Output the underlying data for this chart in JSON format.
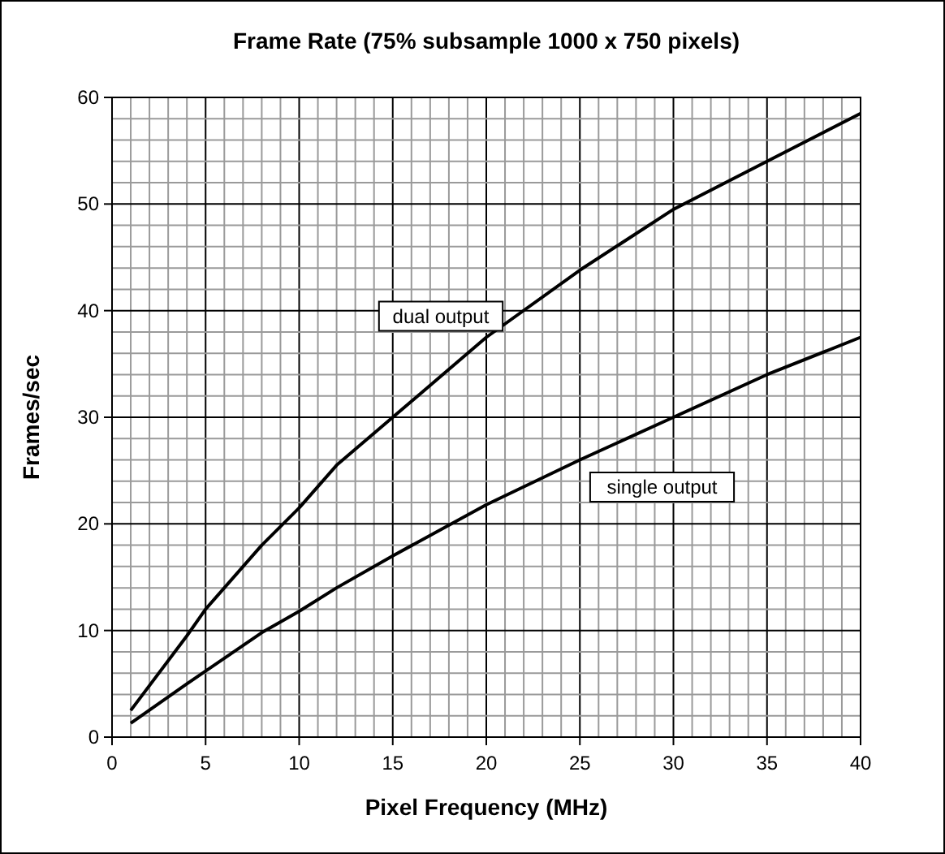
{
  "chart_data": {
    "type": "line",
    "title": "Frame Rate (75% subsample 1000 x 750 pixels)",
    "xlabel": "Pixel Frequency (MHz)",
    "ylabel": "Frames/sec",
    "xlim": [
      0,
      40
    ],
    "ylim": [
      0,
      60
    ],
    "xticks": [
      0,
      {
        "value": 1,
        "label": null
      },
      {
        "value": 2,
        "label": null
      },
      {
        "value": 3,
        "label": null
      },
      {
        "value": 4,
        "label": null
      },
      5,
      {
        "value": 6,
        "label": null
      },
      {
        "value": 7,
        "label": null
      },
      {
        "value": 8,
        "label": null
      },
      {
        "value": 9,
        "label": null
      },
      10,
      {
        "value": 11,
        "label": null
      },
      {
        "value": 12,
        "label": null
      },
      {
        "value": 13,
        "label": null
      },
      {
        "value": 14,
        "label": null
      },
      15,
      {
        "value": 16,
        "label": null
      },
      {
        "value": 17,
        "label": null
      },
      {
        "value": 18,
        "label": null
      },
      {
        "value": 19,
        "label": null
      },
      20,
      {
        "value": 21,
        "label": null
      },
      {
        "value": 22,
        "label": null
      },
      {
        "value": 23,
        "label": null
      },
      {
        "value": 24,
        "label": null
      },
      25,
      {
        "value": 26,
        "label": null
      },
      {
        "value": 27,
        "label": null
      },
      {
        "value": 28,
        "label": null
      },
      {
        "value": 29,
        "label": null
      },
      30,
      {
        "value": 31,
        "label": null
      },
      {
        "value": 32,
        "label": null
      },
      {
        "value": 33,
        "label": null
      },
      {
        "value": 34,
        "label": null
      },
      35,
      {
        "value": 36,
        "label": null
      },
      {
        "value": 37,
        "label": null
      },
      {
        "value": 38,
        "label": null
      },
      {
        "value": 39,
        "label": null
      },
      40
    ],
    "yticks": [
      0,
      {
        "value": 2,
        "label": null
      },
      {
        "value": 4,
        "label": null
      },
      {
        "value": 6,
        "label": null
      },
      {
        "value": 8,
        "label": null
      },
      10,
      {
        "value": 12,
        "label": null
      },
      {
        "value": 14,
        "label": null
      },
      {
        "value": 16,
        "label": null
      },
      {
        "value": 18,
        "label": null
      },
      20,
      {
        "value": 22,
        "label": null
      },
      {
        "value": 24,
        "label": null
      },
      {
        "value": 26,
        "label": null
      },
      {
        "value": 28,
        "label": null
      },
      30,
      {
        "value": 32,
        "label": null
      },
      {
        "value": 34,
        "label": null
      },
      {
        "value": 36,
        "label": null
      },
      {
        "value": 38,
        "label": null
      },
      40,
      {
        "value": 42,
        "label": null
      },
      {
        "value": 44,
        "label": null
      },
      {
        "value": 46,
        "label": null
      },
      {
        "value": 48,
        "label": null
      },
      50,
      {
        "value": 52,
        "label": null
      },
      {
        "value": 54,
        "label": null
      },
      {
        "value": 56,
        "label": null
      },
      {
        "value": 58,
        "label": null
      },
      60
    ],
    "grid": true,
    "line_style": "solid",
    "marker": "none",
    "x": [
      1,
      4,
      5,
      8,
      10,
      12,
      15,
      20,
      25,
      30,
      35,
      40
    ],
    "series": [
      {
        "name": "dual output",
        "color": "#000000",
        "values": [
          2.5,
          9.5,
          12,
          18,
          21.5,
          25.5,
          30,
          37.5,
          43.8,
          49.5,
          54,
          58.5
        ]
      },
      {
        "name": "single output",
        "color": "#000000",
        "values": [
          1.3,
          5,
          6.2,
          9.8,
          11.8,
          14,
          17,
          21.8,
          26,
          30,
          34,
          37.5
        ]
      }
    ]
  }
}
